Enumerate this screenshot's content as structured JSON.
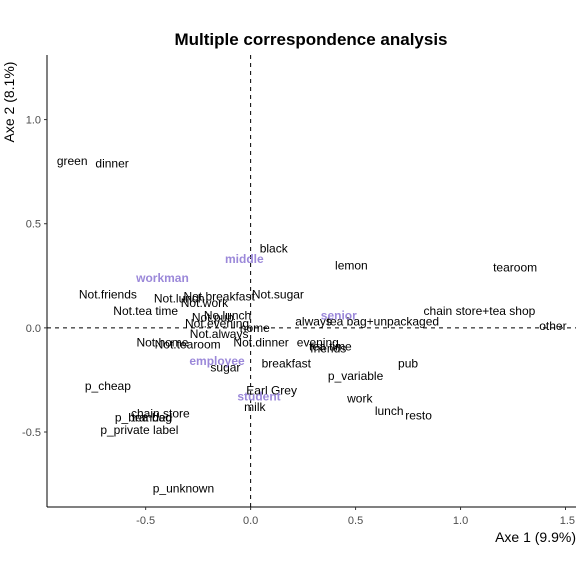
{
  "chart_data": {
    "type": "scatter",
    "title": "Multiple correspondence analysis",
    "xlabel": "Axe 1 (9.9%)",
    "ylabel": "Axe 2 (8.1%)",
    "xlim": [
      -0.97,
      1.55
    ],
    "ylim": [
      -0.86,
      1.31
    ],
    "xticks": [
      -0.5,
      0.0,
      0.5,
      1.0,
      1.5
    ],
    "xtick_labels": [
      "-0.5",
      "0.0",
      "0.5",
      "1.0",
      "1.5"
    ],
    "yticks": [
      -0.5,
      0.0,
      0.5,
      1.0
    ],
    "ytick_labels": [
      "-0.5",
      "0.0",
      "0.5",
      "1.0"
    ],
    "grid": false,
    "reference_lines": {
      "x": 0,
      "y": 0
    },
    "colors": {
      "active": "#000000",
      "supplementary": "#9b88d9"
    },
    "points": [
      {
        "label": "green",
        "x": -0.85,
        "y": 0.8
      },
      {
        "label": "dinner",
        "x": -0.66,
        "y": 0.79
      },
      {
        "label": "black",
        "x": 0.11,
        "y": 0.38
      },
      {
        "label": "lemon",
        "x": 0.48,
        "y": 0.3
      },
      {
        "label": "tearoom",
        "x": 1.26,
        "y": 0.29
      },
      {
        "label": "Not.friends",
        "x": -0.68,
        "y": 0.16
      },
      {
        "label": "Not.sugar",
        "x": 0.13,
        "y": 0.16
      },
      {
        "label": "Not.breakfast",
        "x": -0.15,
        "y": 0.15
      },
      {
        "label": "Not.lunch",
        "x": -0.34,
        "y": 0.14
      },
      {
        "label": "Not.work",
        "x": -0.22,
        "y": 0.12
      },
      {
        "label": "Not.tea time",
        "x": -0.5,
        "y": 0.08
      },
      {
        "label": "chain store+tea shop",
        "x": 1.09,
        "y": 0.08
      },
      {
        "label": "No.lunch",
        "x": -0.11,
        "y": 0.06
      },
      {
        "label": "Not.pub",
        "x": -0.18,
        "y": 0.05
      },
      {
        "label": "Not.evening",
        "x": -0.16,
        "y": 0.02
      },
      {
        "label": "always",
        "x": 0.3,
        "y": 0.03
      },
      {
        "label": "tea bag+unpackaged",
        "x": 0.63,
        "y": 0.03
      },
      {
        "label": "other",
        "x": 1.44,
        "y": 0.01
      },
      {
        "label": "Not.always",
        "x": -0.15,
        "y": -0.03
      },
      {
        "label": "home",
        "x": 0.02,
        "y": 0.0
      },
      {
        "label": "Not.home",
        "x": -0.42,
        "y": -0.07
      },
      {
        "label": "Not.tearoom",
        "x": -0.3,
        "y": -0.08
      },
      {
        "label": "Not.dinner",
        "x": 0.05,
        "y": -0.07
      },
      {
        "label": "evening",
        "x": 0.32,
        "y": -0.07
      },
      {
        "label": "tea time",
        "x": 0.38,
        "y": -0.09
      },
      {
        "label": "friends",
        "x": 0.37,
        "y": -0.1
      },
      {
        "label": "pub",
        "x": 0.75,
        "y": -0.17
      },
      {
        "label": "sugar",
        "x": -0.12,
        "y": -0.19
      },
      {
        "label": "breakfast",
        "x": 0.17,
        "y": -0.17
      },
      {
        "label": "p_variable",
        "x": 0.5,
        "y": -0.23
      },
      {
        "label": "p_cheap",
        "x": -0.68,
        "y": -0.28
      },
      {
        "label": "Earl Grey",
        "x": 0.1,
        "y": -0.3
      },
      {
        "label": "work",
        "x": 0.52,
        "y": -0.34
      },
      {
        "label": "milk",
        "x": 0.02,
        "y": -0.38
      },
      {
        "label": "lunch",
        "x": 0.66,
        "y": -0.4
      },
      {
        "label": "resto",
        "x": 0.8,
        "y": -0.42
      },
      {
        "label": "chain store",
        "x": -0.43,
        "y": -0.41
      },
      {
        "label": "p_branded",
        "x": -0.51,
        "y": -0.43
      },
      {
        "label": "tea bag",
        "x": -0.47,
        "y": -0.43
      },
      {
        "label": "p_private label",
        "x": -0.53,
        "y": -0.49
      },
      {
        "label": "p_unknown",
        "x": -0.32,
        "y": -0.77
      }
    ],
    "supplementary_points": [
      {
        "label": "workman",
        "x": -0.42,
        "y": 0.24
      },
      {
        "label": "middle",
        "x": -0.03,
        "y": 0.33
      },
      {
        "label": "senior",
        "x": 0.42,
        "y": 0.06
      },
      {
        "label": "employee",
        "x": -0.16,
        "y": -0.16
      },
      {
        "label": "student",
        "x": 0.04,
        "y": -0.33
      }
    ]
  }
}
